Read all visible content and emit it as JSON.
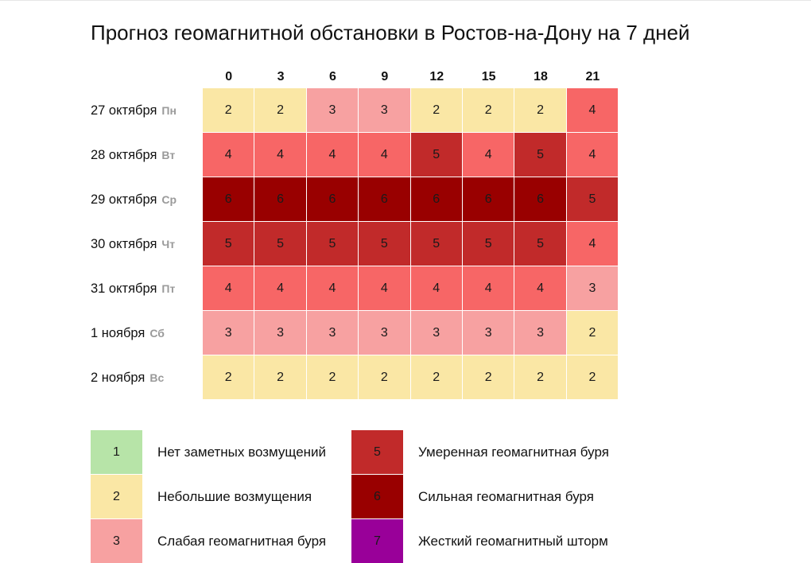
{
  "title": "Прогноз геомагнитной обстановки в Ростов-на-Дону на 7 дней",
  "hours": [
    "0",
    "3",
    "6",
    "9",
    "12",
    "15",
    "18",
    "21"
  ],
  "days": [
    {
      "date": "27 октября",
      "weekday": "Пн",
      "values": [
        2,
        2,
        3,
        3,
        2,
        2,
        2,
        4
      ]
    },
    {
      "date": "28 октября",
      "weekday": "Вт",
      "values": [
        4,
        4,
        4,
        4,
        5,
        4,
        5,
        4
      ]
    },
    {
      "date": "29 октября",
      "weekday": "Ср",
      "values": [
        6,
        6,
        6,
        6,
        6,
        6,
        6,
        5
      ]
    },
    {
      "date": "30 октября",
      "weekday": "Чт",
      "values": [
        5,
        5,
        5,
        5,
        5,
        5,
        5,
        4
      ]
    },
    {
      "date": "31 октября",
      "weekday": "Пт",
      "values": [
        4,
        4,
        4,
        4,
        4,
        4,
        4,
        3
      ]
    },
    {
      "date": "1 ноября",
      "weekday": "Сб",
      "values": [
        3,
        3,
        3,
        3,
        3,
        3,
        3,
        2
      ]
    },
    {
      "date": "2 ноября",
      "weekday": "Вс",
      "values": [
        2,
        2,
        2,
        2,
        2,
        2,
        2,
        2
      ]
    }
  ],
  "colors": {
    "1": "#b7e4a8",
    "2": "#fae7a5",
    "3": "#f7a1a1",
    "4": "#f76666",
    "5": "#c12a2a",
    "6": "#990000",
    "7": "#990099"
  },
  "legend": [
    {
      "level": "1",
      "label": "Нет заметных возмущений"
    },
    {
      "level": "2",
      "label": "Небольшие возмущения"
    },
    {
      "level": "3",
      "label": "Слабая геомагнитная буря"
    },
    {
      "level": "5",
      "label": "Умеренная геомагнитная буря"
    },
    {
      "level": "6",
      "label": "Сильная геомагнитная буря"
    },
    {
      "level": "7",
      "label": "Жесткий геомагнитный шторм"
    }
  ]
}
